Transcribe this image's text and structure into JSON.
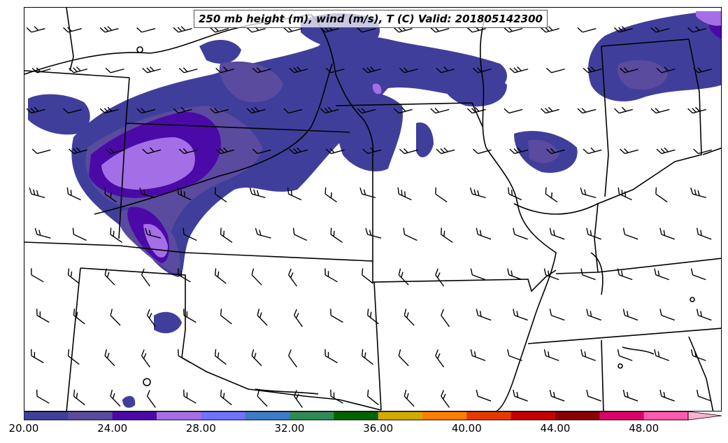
{
  "title": "250 mb height (m), wind (m/s), T (C) Valid: 201805142300",
  "colorbar": {
    "colors": [
      "#3f3f9b",
      "#5a4b9e",
      "#4b0aa8",
      "#a46fe6",
      "#7272ff",
      "#3c7cc8",
      "#2e8b57",
      "#006400",
      "#d4aa00",
      "#ff7f00",
      "#e83800",
      "#c80000",
      "#8b0000",
      "#e0006a",
      "#ff5aaf"
    ],
    "extend_color": "#ffb0d0",
    "min": 20,
    "max": 50,
    "tick_labels": [
      "20.00",
      "24.00",
      "28.00",
      "32.00",
      "36.00",
      "40.00",
      "44.00",
      "48.00"
    ]
  },
  "legend_colors": {
    "level1": "#3f3f9b",
    "level2": "#5a4b9e",
    "level3": "#4b0aa8",
    "level4": "#a46fe6"
  }
}
